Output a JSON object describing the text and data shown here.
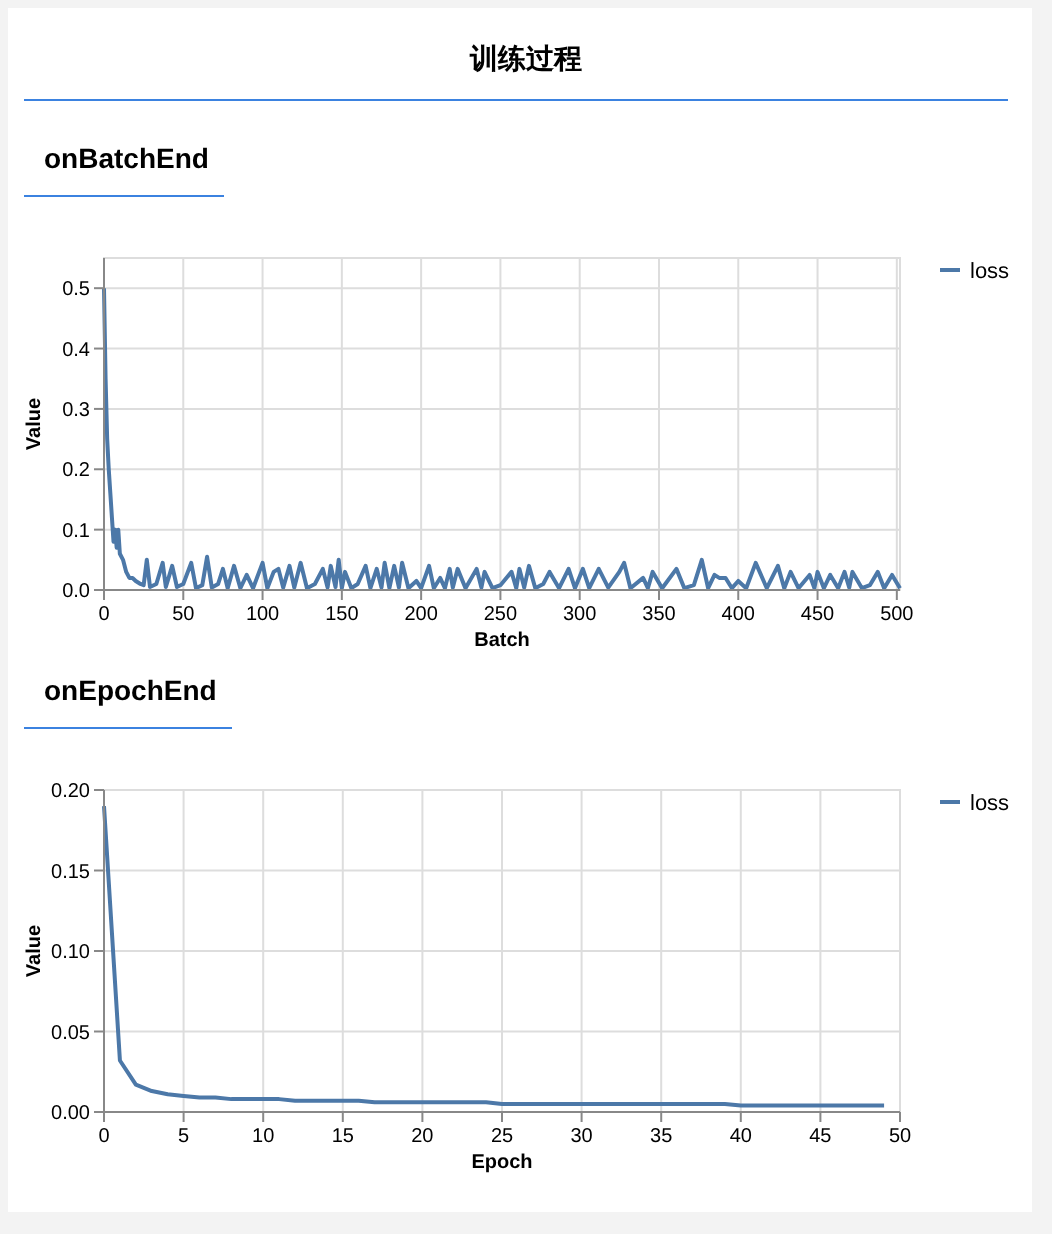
{
  "chart_data": [
    {
      "type": "line",
      "title": "训练过程",
      "subtitle": "onBatchEnd",
      "xlabel": "Batch",
      "ylabel": "Value",
      "xlim": [
        0,
        502
      ],
      "ylim": [
        0,
        0.55
      ],
      "xticks": [
        0,
        50,
        100,
        150,
        200,
        250,
        300,
        350,
        400,
        450,
        500
      ],
      "yticks": [
        {
          "value": 0,
          "label": "0.0"
        },
        {
          "value": 0.1,
          "label": "0.1"
        },
        {
          "value": 0.2,
          "label": "0.2"
        },
        {
          "value": 0.3,
          "label": "0.3"
        },
        {
          "value": 0.4,
          "label": "0.4"
        },
        {
          "value": 0.5,
          "label": "0.5"
        }
      ],
      "grid": true,
      "legend": "top right",
      "marker": "none",
      "line_style": "solid",
      "series": [
        {
          "name": "loss",
          "color": "#4c78a8",
          "x": [
            0,
            1,
            2,
            3,
            4,
            5,
            6,
            7,
            8,
            9,
            10,
            12,
            14,
            16,
            18,
            20,
            23,
            25,
            27,
            29,
            33,
            37,
            39,
            43,
            46,
            50,
            55,
            58,
            62,
            65,
            68,
            72,
            75,
            78,
            82,
            86,
            90,
            94,
            100,
            103,
            107,
            110,
            113,
            117,
            120,
            124,
            128,
            133,
            138,
            141,
            143,
            146,
            148,
            150,
            152,
            156,
            160,
            165,
            168,
            172,
            175,
            177,
            180,
            183,
            186,
            188,
            192,
            197,
            200,
            205,
            208,
            212,
            215,
            218,
            220,
            223,
            228,
            235,
            238,
            240,
            245,
            250,
            257,
            260,
            262,
            265,
            268,
            272,
            277,
            281,
            287,
            293,
            297,
            302,
            306,
            312,
            318,
            325,
            328,
            332,
            340,
            343,
            346,
            352,
            361,
            366,
            372,
            377,
            381,
            385,
            388,
            392,
            396,
            400,
            405,
            411,
            418,
            425,
            429,
            433,
            438,
            445,
            448,
            450,
            454,
            458,
            463,
            467,
            470,
            472,
            478,
            483,
            488,
            492,
            497,
            502
          ],
          "values": [
            0.5,
            0.35,
            0.25,
            0.2,
            0.16,
            0.12,
            0.08,
            0.1,
            0.07,
            0.1,
            0.06,
            0.05,
            0.03,
            0.02,
            0.02,
            0.015,
            0.01,
            0.008,
            0.05,
            0.005,
            0.01,
            0.045,
            0.005,
            0.04,
            0.005,
            0.01,
            0.045,
            0.003,
            0.008,
            0.055,
            0.004,
            0.01,
            0.035,
            0.003,
            0.04,
            0.003,
            0.025,
            0.003,
            0.045,
            0.003,
            0.03,
            0.035,
            0.004,
            0.04,
            0.004,
            0.045,
            0.003,
            0.01,
            0.035,
            0.004,
            0.04,
            0.005,
            0.05,
            0.003,
            0.03,
            0.003,
            0.01,
            0.04,
            0.003,
            0.035,
            0.004,
            0.045,
            0.003,
            0.04,
            0.004,
            0.045,
            0.003,
            0.015,
            0.003,
            0.04,
            0.003,
            0.02,
            0.003,
            0.035,
            0.004,
            0.035,
            0.003,
            0.035,
            0.004,
            0.03,
            0.003,
            0.008,
            0.03,
            0.003,
            0.035,
            0.004,
            0.04,
            0.003,
            0.01,
            0.03,
            0.003,
            0.035,
            0.003,
            0.035,
            0.003,
            0.035,
            0.004,
            0.03,
            0.045,
            0.003,
            0.02,
            0.003,
            0.03,
            0.003,
            0.035,
            0.003,
            0.008,
            0.05,
            0.003,
            0.025,
            0.02,
            0.02,
            0.003,
            0.015,
            0.003,
            0.045,
            0.003,
            0.04,
            0.003,
            0.03,
            0.003,
            0.025,
            0.003,
            0.03,
            0.003,
            0.025,
            0.003,
            0.03,
            0.004,
            0.03,
            0.003,
            0.008,
            0.03,
            0.003,
            0.025,
            0.003
          ]
        }
      ]
    },
    {
      "type": "line",
      "title": "onEpochEnd",
      "xlabel": "Epoch",
      "ylabel": "Value",
      "xlim": [
        0,
        50
      ],
      "ylim": [
        0,
        0.2
      ],
      "xticks": [
        0,
        5,
        10,
        15,
        20,
        25,
        30,
        35,
        40,
        45,
        50
      ],
      "yticks": [
        {
          "value": 0,
          "label": "0.00"
        },
        {
          "value": 0.05,
          "label": "0.05"
        },
        {
          "value": 0.1,
          "label": "0.10"
        },
        {
          "value": 0.15,
          "label": "0.15"
        },
        {
          "value": 0.2,
          "label": "0.20"
        }
      ],
      "grid": true,
      "legend": "top right",
      "marker": "none",
      "line_style": "solid",
      "series": [
        {
          "name": "loss",
          "color": "#4c78a8",
          "x": [
            0,
            1,
            2,
            3,
            4,
            5,
            6,
            7,
            8,
            9,
            10,
            11,
            12,
            13,
            14,
            15,
            16,
            17,
            18,
            19,
            20,
            21,
            22,
            23,
            24,
            25,
            26,
            27,
            28,
            29,
            30,
            31,
            32,
            33,
            34,
            35,
            36,
            37,
            38,
            39,
            40,
            41,
            42,
            43,
            44,
            45,
            46,
            47,
            48,
            49
          ],
          "values": [
            0.19,
            0.032,
            0.017,
            0.013,
            0.011,
            0.01,
            0.009,
            0.009,
            0.008,
            0.008,
            0.008,
            0.008,
            0.007,
            0.007,
            0.007,
            0.007,
            0.007,
            0.006,
            0.006,
            0.006,
            0.006,
            0.006,
            0.006,
            0.006,
            0.006,
            0.005,
            0.005,
            0.005,
            0.005,
            0.005,
            0.005,
            0.005,
            0.005,
            0.005,
            0.005,
            0.005,
            0.005,
            0.005,
            0.005,
            0.005,
            0.004,
            0.004,
            0.004,
            0.004,
            0.004,
            0.004,
            0.004,
            0.004,
            0.004,
            0.004
          ]
        }
      ]
    }
  ]
}
